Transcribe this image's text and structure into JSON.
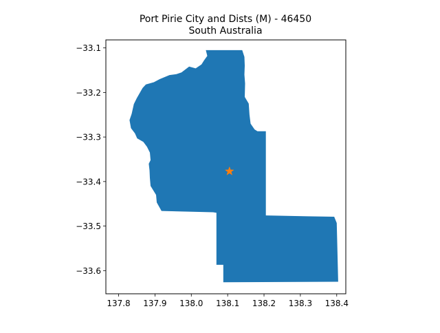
{
  "title": {
    "line1": "Port Pirie City and Dists (M) - 46450",
    "line2": "South Australia"
  },
  "colors": {
    "region_fill": "#1f77b4",
    "marker": "#ff7f0e",
    "axis": "#000000",
    "background": "#ffffff"
  },
  "map": {
    "xlim": [
      137.765,
      138.425
    ],
    "ylim": [
      -33.652,
      -33.082
    ],
    "xticks": [
      {
        "value": 137.8,
        "label": "137.8"
      },
      {
        "value": 137.9,
        "label": "137.9"
      },
      {
        "value": 138.0,
        "label": "138.0"
      },
      {
        "value": 138.1,
        "label": "138.1"
      },
      {
        "value": 138.2,
        "label": "138.2"
      },
      {
        "value": 138.3,
        "label": "138.3"
      },
      {
        "value": 138.4,
        "label": "138.4"
      }
    ],
    "yticks": [
      {
        "value": -33.1,
        "label": "−33.1"
      },
      {
        "value": -33.2,
        "label": "−33.2"
      },
      {
        "value": -33.3,
        "label": "−33.3"
      },
      {
        "value": -33.4,
        "label": "−33.4"
      },
      {
        "value": -33.5,
        "label": "−33.5"
      },
      {
        "value": -33.6,
        "label": "−33.6"
      }
    ],
    "region_outline": [
      [
        138.04,
        -33.105
      ],
      [
        138.14,
        -33.105
      ],
      [
        138.146,
        -33.12
      ],
      [
        138.147,
        -33.14
      ],
      [
        138.146,
        -33.16
      ],
      [
        138.148,
        -33.18
      ],
      [
        138.147,
        -33.21
      ],
      [
        138.158,
        -33.225
      ],
      [
        138.16,
        -33.25
      ],
      [
        138.163,
        -33.27
      ],
      [
        138.174,
        -33.283
      ],
      [
        138.182,
        -33.287
      ],
      [
        138.205,
        -33.287
      ],
      [
        138.205,
        -33.476
      ],
      [
        138.32,
        -33.478
      ],
      [
        138.393,
        -33.479
      ],
      [
        138.4,
        -33.493
      ],
      [
        138.404,
        -33.625
      ],
      [
        138.088,
        -33.626
      ],
      [
        138.088,
        -33.587
      ],
      [
        138.069,
        -33.587
      ],
      [
        138.069,
        -33.47
      ],
      [
        138.06,
        -33.469
      ],
      [
        137.918,
        -33.466
      ],
      [
        137.905,
        -33.447
      ],
      [
        137.903,
        -33.43
      ],
      [
        137.888,
        -33.41
      ],
      [
        137.886,
        -33.392
      ],
      [
        137.885,
        -33.375
      ],
      [
        137.883,
        -33.36
      ],
      [
        137.888,
        -33.352
      ],
      [
        137.886,
        -33.335
      ],
      [
        137.878,
        -33.322
      ],
      [
        137.868,
        -33.311
      ],
      [
        137.851,
        -33.303
      ],
      [
        137.845,
        -33.292
      ],
      [
        137.834,
        -33.28
      ],
      [
        137.83,
        -33.262
      ],
      [
        137.836,
        -33.248
      ],
      [
        137.842,
        -33.226
      ],
      [
        137.85,
        -33.213
      ],
      [
        137.866,
        -33.19
      ],
      [
        137.875,
        -33.182
      ],
      [
        137.897,
        -33.177
      ],
      [
        137.913,
        -33.17
      ],
      [
        137.94,
        -33.161
      ],
      [
        137.959,
        -33.159
      ],
      [
        137.973,
        -33.155
      ],
      [
        137.994,
        -33.142
      ],
      [
        138.012,
        -33.146
      ],
      [
        138.028,
        -33.137
      ],
      [
        138.035,
        -33.128
      ],
      [
        138.044,
        -33.118
      ]
    ],
    "marker": {
      "lon": 138.105,
      "lat": -33.377,
      "symbol": "star"
    }
  }
}
